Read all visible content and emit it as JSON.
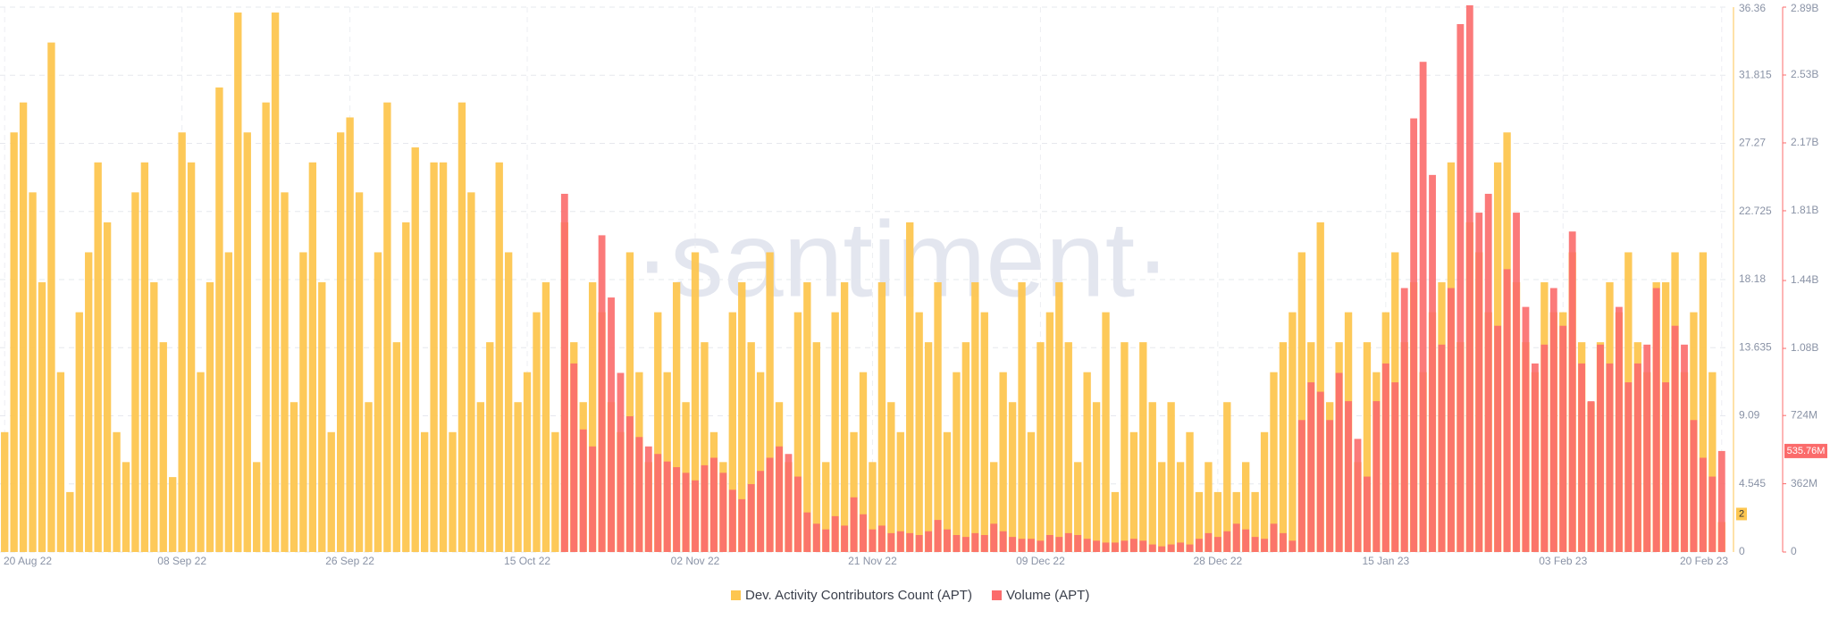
{
  "chart_data": {
    "type": "bar",
    "watermark": "·santiment·",
    "categories": [
      "20 Aug 22",
      null,
      null,
      null,
      null,
      null,
      null,
      null,
      null,
      null,
      null,
      null,
      null,
      null,
      null,
      null,
      null,
      null,
      null,
      "08 Sep 22",
      null,
      null,
      null,
      null,
      null,
      null,
      null,
      null,
      null,
      null,
      null,
      null,
      null,
      null,
      null,
      null,
      null,
      "26 Sep 22",
      null,
      null,
      null,
      null,
      null,
      null,
      null,
      null,
      null,
      null,
      null,
      null,
      null,
      null,
      null,
      null,
      null,
      null,
      "15 Oct 22",
      null,
      null,
      null,
      null,
      null,
      null,
      null,
      null,
      null,
      null,
      null,
      null,
      null,
      null,
      null,
      null,
      null,
      "02 Nov 22",
      null,
      null,
      null,
      null,
      null,
      null,
      null,
      null,
      null,
      null,
      null,
      null,
      null,
      null,
      null,
      null,
      null,
      null,
      "21 Nov 22",
      null,
      null,
      null,
      null,
      null,
      null,
      null,
      null,
      null,
      null,
      null,
      null,
      null,
      null,
      null,
      null,
      null,
      "09 Dec 22",
      null,
      null,
      null,
      null,
      null,
      null,
      null,
      null,
      null,
      null,
      null,
      null,
      null,
      null,
      null,
      null,
      null,
      null,
      "28 Dec 22",
      null,
      null,
      null,
      null,
      null,
      null,
      null,
      null,
      null,
      null,
      null,
      null,
      null,
      null,
      null,
      null,
      null,
      "15 Jan 23",
      null,
      null,
      null,
      null,
      null,
      null,
      null,
      null,
      null,
      null,
      null,
      null,
      null,
      null,
      null,
      null,
      null,
      null,
      "03 Feb 23",
      null,
      null,
      null,
      null,
      null,
      null,
      null,
      null,
      null,
      null,
      null,
      null,
      null,
      null,
      null,
      null,
      "20 Feb 23"
    ],
    "series": [
      {
        "name": "Dev. Activity Contributors Count (APT)",
        "color": "#fdc650",
        "axis": "y",
        "values": [
          8,
          28,
          30,
          24,
          18,
          34,
          12,
          4,
          16,
          20,
          26,
          22,
          8,
          6,
          24,
          26,
          18,
          14,
          5,
          28,
          26,
          12,
          18,
          31,
          20,
          36,
          28,
          6,
          30,
          36,
          24,
          10,
          20,
          26,
          18,
          8,
          28,
          29,
          24,
          10,
          20,
          30,
          14,
          22,
          27,
          8,
          26,
          26,
          8,
          30,
          24,
          10,
          14,
          26,
          20,
          10,
          12,
          16,
          18,
          8,
          22,
          14,
          10,
          18,
          16,
          10,
          8,
          20,
          12,
          6,
          16,
          12,
          18,
          10,
          20,
          14,
          8,
          6,
          16,
          18,
          14,
          12,
          20,
          10,
          6,
          16,
          18,
          14,
          6,
          16,
          18,
          8,
          12,
          6,
          18,
          10,
          8,
          22,
          16,
          14,
          18,
          8,
          12,
          14,
          18,
          16,
          6,
          12,
          10,
          18,
          8,
          14,
          16,
          18,
          14,
          6,
          12,
          10,
          16,
          4,
          14,
          8,
          14,
          10,
          6,
          10,
          6,
          8,
          4,
          6,
          4,
          10,
          4,
          6,
          4,
          8,
          12,
          14,
          16,
          20,
          14,
          22,
          10,
          14,
          16,
          6,
          14,
          12,
          16,
          20,
          14,
          18,
          12,
          16,
          18,
          26,
          14,
          22,
          20,
          16,
          26,
          28,
          18,
          14,
          12,
          18,
          16,
          16,
          20,
          14,
          10,
          14,
          18,
          16,
          20,
          14,
          12,
          18,
          18,
          20,
          12,
          16,
          20,
          12,
          2
        ]
      },
      {
        "name": "Volume (APT)",
        "color": "#fb6b6b",
        "axis": "y2",
        "current_label": "535.76M",
        "values": [
          null,
          null,
          null,
          null,
          null,
          null,
          null,
          null,
          null,
          null,
          null,
          null,
          null,
          null,
          null,
          null,
          null,
          null,
          null,
          null,
          null,
          null,
          null,
          null,
          null,
          null,
          null,
          null,
          null,
          null,
          null,
          null,
          null,
          null,
          null,
          null,
          null,
          null,
          null,
          null,
          null,
          null,
          null,
          null,
          null,
          null,
          null,
          null,
          null,
          null,
          null,
          null,
          null,
          null,
          null,
          null,
          null,
          null,
          null,
          null,
          1900,
          1000,
          650,
          560,
          1680,
          1350,
          950,
          720,
          610,
          560,
          520,
          480,
          450,
          420,
          380,
          460,
          500,
          420,
          330,
          280,
          360,
          430,
          500,
          560,
          520,
          400,
          210,
          150,
          120,
          190,
          140,
          290,
          200,
          120,
          140,
          100,
          110,
          100,
          90,
          110,
          170,
          120,
          90,
          80,
          100,
          90,
          150,
          110,
          80,
          70,
          70,
          60,
          90,
          80,
          100,
          90,
          70,
          60,
          50,
          50,
          60,
          70,
          60,
          40,
          30,
          40,
          50,
          40,
          70,
          100,
          80,
          110,
          150,
          120,
          80,
          70,
          150,
          100,
          60,
          700,
          900,
          850,
          700,
          950,
          800,
          600,
          400,
          800,
          1000,
          900,
          1400,
          2300,
          2600,
          2000,
          1100,
          1400,
          2800,
          2900,
          1800,
          1900,
          1200,
          1500,
          1800,
          1300,
          1000,
          1100,
          1400,
          1200,
          1700,
          1000,
          800,
          1100,
          1000,
          1300,
          900,
          1000,
          1100,
          1400,
          900,
          1200,
          1100,
          700,
          500,
          400,
          535.76
        ]
      }
    ],
    "ylim": [
      0,
      36.36
    ],
    "yticks": [
      0,
      4.545,
      9.09,
      13.635,
      18.18,
      22.725,
      27.27,
      31.815,
      36.36
    ],
    "y2lim": [
      0,
      2890
    ],
    "y2ticks": [
      0,
      {
        "value": 362,
        "label": "362M"
      },
      {
        "value": 724,
        "label": "724M"
      },
      {
        "value": 1080,
        "label": "1.08B"
      },
      {
        "value": 1440,
        "label": "1.44B"
      },
      {
        "value": 1810,
        "label": "1.81B"
      },
      {
        "value": 2170,
        "label": "2.17B"
      },
      {
        "value": 2530,
        "label": "2.53B"
      },
      {
        "value": 2890,
        "label": "2.89B"
      }
    ],
    "grid": true,
    "legend": "bottom"
  }
}
